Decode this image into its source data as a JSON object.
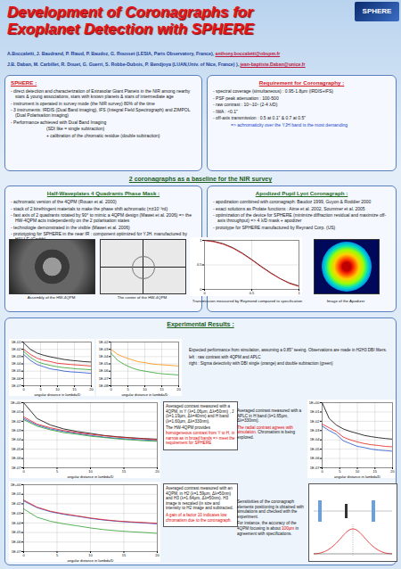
{
  "header": {
    "title": "Development of Coronagraphs for Exoplanet Detection with SPHERE",
    "logo": "SPHERE",
    "authors": [
      {
        "text": "A.Boccaletti, J. Baudrand, P. Riaud, P. Baudoz, G. Rousset (LESIA, Paris Observatory, France), ",
        "email": "anthony.boccaletti@obspm.fr"
      },
      {
        "text": "J.B. Daban, M. Carbillet, R. Douet, G. Guerri, S. Robbe-Dubois, P. Bendjoya (LUAN,Univ. of Nice, France) ), ",
        "email": "jean-baptiste.Daban@unice.fr"
      }
    ]
  },
  "sphere": {
    "heading": "SPHERE :",
    "items": [
      "- direct detection and characterization of Extrasolar Giant Planets in the NIR among nearby stars & young associations, stars with known planets & stars of intermediate age",
      "- instrument is operated in survey mode (the NIR survey) 80% of the time",
      "- 3 instruments: IRDIS (Dual Band imaging), IFS (Integral Field Spectrograph) and ZIMPOL (Dual Polarisation imaging)",
      "- Performance achieved with Dual Band Imaging",
      "(SDI like = single subtraction)",
      "+ calibration of the chromatic residue (double subtraction)"
    ]
  },
  "requirement": {
    "heading": "Requirement for Coronagraphy :",
    "items": [
      "- spectral coverage (simultaneous) : 0.95-1.8µm (IRDIS+IFS)",
      "- PSF peak attenuation : 100-500",
      "- raw contrast : 10⁴-10⁵ (2-4 λ/D)",
      "- IWA : <0.1\"",
      "- off-axis transmission : 0.5 at 0.1\" & 0.7 at 0.5\"",
      {
        "text": "=> achromaticity over the YJH band is the most demanding",
        "color": "#1a3dcc"
      }
    ]
  },
  "banner": "2 coronagraphs as a baseline for the NIR survey",
  "hw4qpm": {
    "heading": "Half-Waveplates 4 Quadrants Phase Mask :",
    "items": [
      "- achromatic version of the 4QPM (Rouan et al. 2000)",
      "- stack of 2 birefringent materials to make the phase shift achromatic (π±10⁻³rd)",
      "- fast axis of 2 quadrants rotated by 90° to mimic a 4QPM design (Mawet et al. 2006) => the HW-4QPM acts independently on the 2 polarisation states",
      "- technologie demonstrated in the visible (Mawet et al. 2006)",
      "- prototyping for SPHERE in the near IR : component optimized for YJH. manufactured by HALLE (Gmbh)"
    ],
    "captions": [
      "Assembly of the HW-4QPM",
      "The center of the HW-4QPM"
    ]
  },
  "aplc": {
    "heading": "Apodized Pupil Lyot Coronagraph :",
    "items": [
      "- apodization combined with coronagraph: Baudoz 1999, Guyon & Roddier 2000",
      "- exact solutions as Prolate functions : Aime et al. 2002, Soummer et al. 2005",
      "- optimization of the device for SPHERE (minimize diffraction residual and maximize off-axis throughput) => 4 λ/D mask + apodizer",
      "- prototype for SPHERE manufactured by Reynard Corp. (US)"
    ],
    "captions": [
      "Transmission measured by Reymond compared to specification",
      "Image of the Apodizer"
    ]
  },
  "results": {
    "heading": "Experimental Results :",
    "notes": [
      {
        "paragraphs": [
          [
            {
              "text": "Expected performance from simulation, assuming a 0.85\" seeing. Observations are made in H2H3 DBI filters."
            }
          ],
          [
            {
              "text": "left : raw contrast with 4QPM and APLC"
            }
          ],
          [
            {
              "text": "right : Sigma detectivity with DBI single (orange) and double subtraction (green)"
            }
          ]
        ]
      },
      {
        "paragraphs": [
          [
            {
              "text": "Averaged contrast measured with a 4QPM, in Y (λ=1.06µm, Δλ=50nm) , J (λ=1.19µm, Δλ=40nm) and H band (λ=1.60µm, Δλ=330nm)."
            }
          ],
          [
            {
              "text": "The HW-4QPM provides "
            },
            {
              "text": "homogeneous contrast from Y to H, in narrow as in broad bands => meet the requirement for SPHERE",
              "color": "#e00000"
            }
          ]
        ]
      },
      {
        "paragraphs": [
          [
            {
              "text": "Averaged contrast measured with a APLC in H band (λ=1.65µm, Δλ=330nm)."
            }
          ],
          [
            {
              "text": "The radial contrast agrees with simulation.",
              "color": "#e00000"
            },
            {
              "text": " Chromatism is being explored."
            }
          ]
        ]
      },
      {
        "paragraphs": [
          [
            {
              "text": "Averaged contrast measured with an 4QPM, in H2 (λ=1.59µm, Δλ=50nm) and H3 (λ=1.64µm, Δλ=50nm). H3 image is rescaled (in size and intensity to H2 image and subtracted."
            }
          ],
          [
            {
              "text": "A gain of a factor 10 indicates low chromatism due to the coronagraph.",
              "color": "#e00000"
            }
          ]
        ]
      },
      {
        "paragraphs": [
          [
            {
              "text": "Sensitivities of the coronagraph elements positioning is obtained with simulations and checked with the experiment."
            }
          ],
          [
            {
              "text": "For instance, the accuracy of the 4QPM focusing is about "
            },
            {
              "text": "100µm",
              "color": "#e00000"
            },
            {
              "text": " in agreement with specifications."
            }
          ]
        ]
      }
    ]
  },
  "chart_data": [
    {
      "type": "line",
      "log": "y",
      "grid": true,
      "xlabel": "angular distance in lambda/D",
      "x": [
        0,
        2,
        4,
        6,
        8,
        10,
        12,
        14,
        16,
        18,
        20
      ],
      "xlim": [
        0,
        20
      ],
      "xticks": [
        0,
        5,
        10,
        15,
        20
      ],
      "ylim": [
        1e-07,
        0.1
      ],
      "yticks": [
        {
          "value": 1e-07,
          "label": "1E-07"
        },
        {
          "value": 1e-06,
          "label": "1E-06"
        },
        {
          "value": 1e-05,
          "label": "1E-05"
        },
        {
          "value": 0.0001,
          "label": "1E-04"
        },
        {
          "value": 0.001,
          "label": "1E-03"
        },
        {
          "value": 0.01,
          "label": "1E-02"
        },
        {
          "value": 0.1,
          "label": "1E-01"
        }
      ],
      "series": [
        {
          "color": "#000000",
          "values": [
            0.08,
            0.01,
            0.003,
            0.0015,
            0.0009,
            0.0006,
            0.0004,
            0.0003,
            0.00025,
            0.0002,
            0.00018
          ]
        },
        {
          "color": "#e41a1c",
          "values": [
            0.01,
            0.002,
            0.0006,
            0.0003,
            0.0002,
            0.00012,
            0.0001,
            8e-05,
            7e-05,
            6e-05,
            5e-05
          ]
        },
        {
          "color": "#2ca02c",
          "values": [
            0.005,
            0.0008,
            0.0002,
            0.0001,
            6e-05,
            4e-05,
            3e-05,
            2.5e-05,
            2e-05,
            1.8e-05,
            1.5e-05
          ]
        },
        {
          "color": "#1f4fd1",
          "values": [
            0.002,
            0.0003,
            8e-05,
            4e-05,
            2e-05,
            1.5e-05,
            1e-05,
            8e-06,
            7e-06,
            6e-06,
            5e-06
          ]
        }
      ]
    },
    {
      "type": "line",
      "log": "y",
      "grid": true,
      "xlabel": "angular distance in lambda/D",
      "x": [
        0,
        2,
        4,
        6,
        8,
        10,
        12,
        14,
        16,
        18,
        20
      ],
      "xlim": [
        0,
        20
      ],
      "xticks": [
        0,
        5,
        10,
        15,
        20
      ],
      "ylim": [
        1e-08,
        0.01
      ],
      "yticks": [
        {
          "value": 1e-08,
          "label": "1E-08"
        },
        {
          "value": 1e-07,
          "label": "1E-07"
        },
        {
          "value": 1e-06,
          "label": "1E-06"
        },
        {
          "value": 1e-05,
          "label": "1E-05"
        },
        {
          "value": 0.0001,
          "label": "1E-04"
        },
        {
          "value": 0.001,
          "label": "1E-03"
        },
        {
          "value": 0.01,
          "label": "1E-02"
        }
      ],
      "series": [
        {
          "color": "#ff8c00",
          "values": [
            0.001,
            0.0002,
            8e-05,
            4e-05,
            2e-05,
            1.5e-05,
            1e-05,
            8e-06,
            7e-06,
            6e-06,
            5e-06
          ]
        },
        {
          "color": "#2ca02c",
          "values": [
            0.0003,
            3e-05,
            8e-06,
            3e-06,
            1.5e-06,
            1e-06,
            7e-07,
            5e-07,
            4e-07,
            3.5e-07,
            3e-07
          ]
        }
      ]
    },
    {
      "type": "line",
      "log": "y",
      "grid": true,
      "xlabel": "angular distance in lambda/D",
      "x": [
        0,
        2,
        4,
        6,
        8,
        10,
        12,
        14,
        16,
        18,
        20
      ],
      "xlim": [
        0,
        20
      ],
      "xticks": [
        0,
        5,
        10,
        15,
        20
      ],
      "ylim": [
        1e-07,
        1
      ],
      "yticks": [
        {
          "value": 1e-07,
          "label": "1E-07"
        },
        {
          "value": 1e-06,
          "label": "1E-06"
        },
        {
          "value": 1e-05,
          "label": "1E-05"
        },
        {
          "value": 0.0001,
          "label": "1E-04"
        },
        {
          "value": 0.001,
          "label": "1E-03"
        },
        {
          "value": 0.01,
          "label": "1E-02"
        },
        {
          "value": 0.1,
          "label": "1E-01"
        },
        {
          "value": 1,
          "label": "1E+00"
        }
      ],
      "series": [
        {
          "color": "#000000",
          "values": [
            1,
            0.02,
            0.004,
            0.0015,
            0.0008,
            0.0005,
            0.0003,
            0.00022,
            0.00017,
            0.00014,
            0.00012
          ]
        },
        {
          "color": "#1f4fd1",
          "values": [
            0.02,
            0.004,
            0.0015,
            0.0008,
            0.0005,
            0.0003,
            0.0002,
            0.00015,
            0.00012,
            0.0001,
            8e-05
          ]
        },
        {
          "color": "#2ca02c",
          "values": [
            0.015,
            0.003,
            0.0012,
            0.0006,
            0.0004,
            0.00025,
            0.00018,
            0.00013,
            0.0001,
            8e-05,
            7e-05
          ]
        },
        {
          "color": "#e41a1c",
          "values": [
            0.03,
            0.005,
            0.002,
            0.001,
            0.0006,
            0.0004,
            0.00028,
            0.0002,
            0.00016,
            0.00013,
            0.0001
          ]
        }
      ]
    },
    {
      "type": "line",
      "log": "y",
      "grid": true,
      "xlabel": "angular distance in lambda/D",
      "x": [
        0,
        2,
        4,
        6,
        8,
        10,
        12,
        14,
        16,
        18,
        20
      ],
      "xlim": [
        0,
        20
      ],
      "xticks": [
        0,
        5,
        10,
        15,
        20
      ],
      "ylim": [
        1e-07,
        1
      ],
      "yticks": [
        {
          "value": 1e-07,
          "label": "1E-07"
        },
        {
          "value": 1e-06,
          "label": "1E-06"
        },
        {
          "value": 1e-05,
          "label": "1E-05"
        },
        {
          "value": 0.0001,
          "label": "1E-04"
        },
        {
          "value": 0.001,
          "label": "1E-03"
        },
        {
          "value": 0.01,
          "label": "1E-02"
        },
        {
          "value": 0.1,
          "label": "1E-01"
        },
        {
          "value": 1,
          "label": "1E+00"
        }
      ],
      "series": [
        {
          "color": "#000000",
          "values": [
            1,
            0.02,
            0.004,
            0.0015,
            0.0008,
            0.0005,
            0.0003,
            0.00022,
            0.00017,
            0.00014,
            0.00012
          ]
        },
        {
          "color": "#e41a1c",
          "values": [
            0.005,
            0.002,
            0.0008,
            0.0002,
            0.0001,
            6e-05,
            4e-05,
            3e-05,
            2.5e-05,
            2e-05,
            1.8e-05
          ]
        },
        {
          "color": "#1f4fd1",
          "values": [
            0.003,
            0.001,
            0.0004,
            8e-05,
            4e-05,
            2e-05,
            1.5e-05,
            1e-05,
            8e-06,
            7e-06,
            6e-06
          ]
        }
      ]
    },
    {
      "type": "line",
      "log": "y",
      "grid": true,
      "xlabel": "angular distance in lambda/D",
      "x": [
        0,
        2,
        4,
        6,
        8,
        10,
        12,
        14,
        16,
        18,
        20
      ],
      "xlim": [
        0,
        20
      ],
      "xticks": [
        0,
        5,
        10,
        15,
        20
      ],
      "ylim": [
        1e-07,
        1
      ],
      "yticks": [
        {
          "value": 1e-07,
          "label": "1E-07"
        },
        {
          "value": 1e-06,
          "label": "1E-06"
        },
        {
          "value": 1e-05,
          "label": "1E-05"
        },
        {
          "value": 0.0001,
          "label": "1E-04"
        },
        {
          "value": 0.001,
          "label": "1E-03"
        },
        {
          "value": 0.01,
          "label": "1E-02"
        },
        {
          "value": 0.1,
          "label": "1E-01"
        },
        {
          "value": 1,
          "label": "1E+00"
        }
      ],
      "series": [
        {
          "color": "#1f4fd1",
          "values": [
            0.02,
            0.004,
            0.0015,
            0.0008,
            0.0005,
            0.0003,
            0.0002,
            0.00015,
            0.00012,
            0.0001,
            8e-05
          ]
        },
        {
          "color": "#e41a1c",
          "values": [
            0.025,
            0.0045,
            0.0017,
            0.0009,
            0.00055,
            0.00033,
            0.00022,
            0.00016,
            0.00013,
            0.00011,
            9e-05
          ]
        },
        {
          "color": "#2ca02c",
          "values": [
            0.003,
            0.0004,
            0.00015,
            8e-05,
            5e-05,
            3e-05,
            2e-05,
            1.5e-05,
            1.2e-05,
            1e-05,
            8e-06
          ]
        }
      ]
    },
    {
      "type": "line",
      "grid": true,
      "x": [
        0,
        0.1,
        0.2,
        0.3,
        0.4,
        0.5,
        0.6,
        0.7,
        0.8,
        0.9,
        1
      ],
      "xlim": [
        0,
        1
      ],
      "xticks": [
        0,
        0.5,
        1
      ],
      "ylim": [
        0,
        1
      ],
      "yticks": [
        0,
        0.5,
        1
      ],
      "series": [
        {
          "color": "#000000",
          "values": [
            1,
            0.98,
            0.93,
            0.85,
            0.74,
            0.61,
            0.47,
            0.34,
            0.22,
            0.13,
            0.07
          ]
        },
        {
          "color": "#e41a1c",
          "values": [
            1,
            0.97,
            0.92,
            0.84,
            0.73,
            0.6,
            0.46,
            0.33,
            0.22,
            0.12,
            0.06
          ]
        }
      ]
    }
  ]
}
